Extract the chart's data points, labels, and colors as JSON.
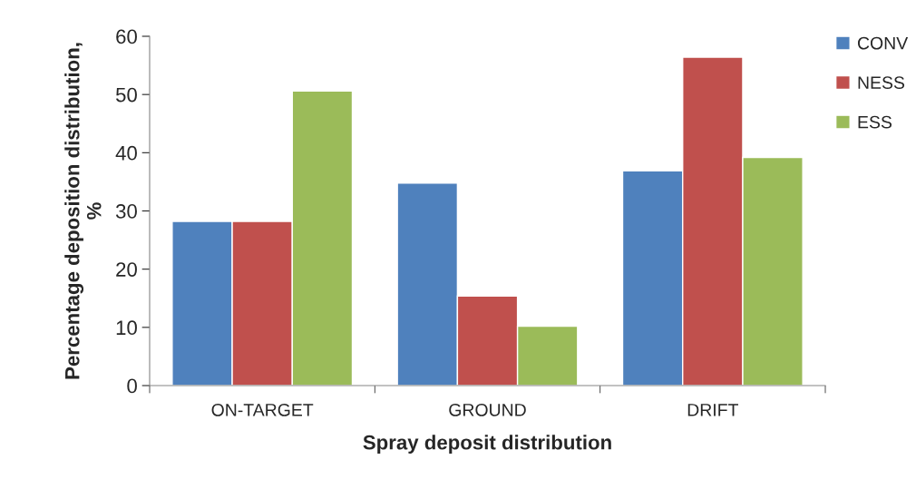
{
  "chart_data": {
    "type": "bar",
    "xlabel": "Spray deposit distribution",
    "ylabel": "Percentage deposition distribution,\n%",
    "categories": [
      "ON-TARGET",
      "GROUND",
      "DRIFT"
    ],
    "series": [
      {
        "name": "CONV",
        "color": "#4f81bd",
        "values": [
          28.2,
          34.8,
          36.9
        ]
      },
      {
        "name": "NESS",
        "color": "#c0504d",
        "values": [
          28.2,
          15.4,
          56.4
        ]
      },
      {
        "name": "ESS",
        "color": "#9bbb59",
        "values": [
          50.6,
          10.2,
          39.2
        ]
      }
    ],
    "ylim": [
      0,
      60
    ],
    "yticks": [
      0,
      10,
      20,
      30,
      40,
      50,
      60
    ],
    "grid": false,
    "legend": "top right"
  }
}
